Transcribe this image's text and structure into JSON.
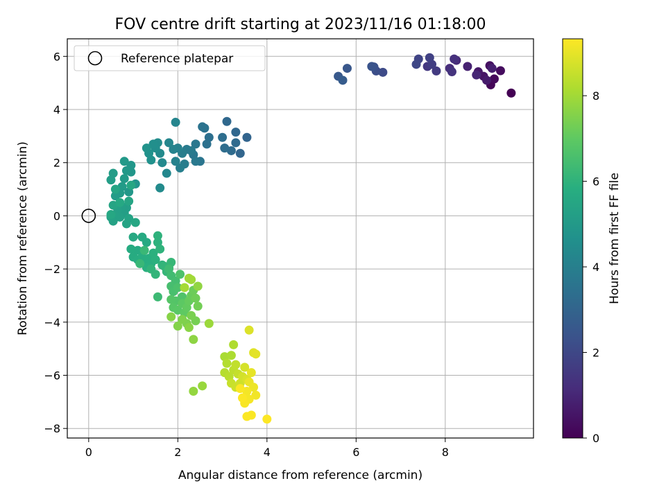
{
  "chart_data": {
    "type": "scatter",
    "title": "FOV centre drift starting at 2023/11/16 01:18:00",
    "xlabel": "Angular distance from reference (arcmin)",
    "ylabel": "Rotation from reference (arcmin)",
    "xlim": [
      -0.48,
      9.98
    ],
    "ylim": [
      -8.36,
      6.66
    ],
    "xticks": [
      0,
      2,
      4,
      6,
      8
    ],
    "yticks": [
      -8,
      -6,
      -4,
      -2,
      0,
      2,
      4,
      6
    ],
    "grid": true,
    "legend": {
      "placement": "top-left",
      "entries": [
        "Reference platepar"
      ]
    },
    "reference_point": {
      "x": 0,
      "y": 0,
      "label": "Reference platepar"
    },
    "colorbar": {
      "label": "Hours from first FF file",
      "colormap": "viridis",
      "range": [
        0,
        9.33
      ],
      "ticks": [
        0,
        2,
        4,
        6,
        8
      ]
    },
    "series": [
      {
        "fields": [
          "x",
          "y",
          "hours"
        ],
        "points": [
          [
            9.48,
            4.62,
            0.0
          ],
          [
            9.02,
            4.93,
            0.1
          ],
          [
            9.1,
            5.15,
            0.2
          ],
          [
            9.24,
            5.46,
            0.3
          ],
          [
            9.0,
            5.65,
            0.4
          ],
          [
            8.86,
            5.25,
            0.5
          ],
          [
            8.74,
            5.42,
            0.6
          ],
          [
            8.93,
            5.1,
            0.7
          ],
          [
            9.05,
            5.55,
            0.8
          ],
          [
            8.5,
            5.62,
            0.9
          ],
          [
            8.7,
            5.3,
            1.0
          ],
          [
            8.25,
            5.85,
            1.1
          ],
          [
            8.1,
            5.55,
            1.2
          ],
          [
            8.2,
            5.9,
            1.3
          ],
          [
            8.15,
            5.42,
            1.4
          ],
          [
            7.6,
            5.62,
            1.5
          ],
          [
            7.8,
            5.45,
            1.6
          ],
          [
            7.7,
            5.7,
            1.7
          ],
          [
            7.65,
            5.95,
            1.8
          ],
          [
            7.4,
            5.9,
            1.9
          ],
          [
            7.35,
            5.7,
            2.0
          ],
          [
            6.6,
            5.4,
            2.1
          ],
          [
            6.45,
            5.45,
            2.2
          ],
          [
            6.4,
            5.6,
            2.3
          ],
          [
            6.35,
            5.62,
            2.4
          ],
          [
            5.8,
            5.55,
            2.5
          ],
          [
            5.6,
            5.25,
            2.6
          ],
          [
            5.7,
            5.1,
            2.7
          ],
          [
            3.55,
            2.95,
            3.0
          ],
          [
            3.4,
            2.35,
            3.05
          ],
          [
            3.3,
            3.15,
            3.1
          ],
          [
            3.1,
            3.55,
            3.15
          ],
          [
            3.3,
            2.75,
            3.2
          ],
          [
            3.2,
            2.45,
            3.25
          ],
          [
            3.05,
            2.55,
            3.3
          ],
          [
            3.0,
            2.95,
            3.35
          ],
          [
            2.7,
            2.95,
            3.4
          ],
          [
            2.65,
            2.7,
            3.45
          ],
          [
            2.6,
            3.3,
            3.5
          ],
          [
            2.55,
            3.35,
            3.55
          ],
          [
            2.5,
            2.05,
            3.6
          ],
          [
            2.35,
            2.3,
            3.65
          ],
          [
            2.4,
            2.7,
            3.7
          ],
          [
            2.4,
            2.05,
            3.75
          ],
          [
            2.3,
            2.45,
            3.8
          ],
          [
            2.2,
            2.5,
            3.85
          ],
          [
            2.15,
            1.95,
            3.9
          ],
          [
            2.1,
            2.35,
            3.95
          ],
          [
            2.05,
            1.8,
            4.0
          ],
          [
            2.0,
            2.55,
            4.05
          ],
          [
            1.95,
            2.05,
            4.1
          ],
          [
            1.9,
            2.5,
            4.15
          ],
          [
            1.95,
            3.52,
            4.2
          ],
          [
            1.8,
            2.75,
            4.25
          ],
          [
            1.75,
            1.6,
            4.3
          ],
          [
            1.65,
            2.0,
            4.35
          ],
          [
            1.6,
            2.35,
            4.4
          ],
          [
            1.6,
            1.05,
            4.45
          ],
          [
            1.55,
            2.75,
            4.5
          ],
          [
            1.5,
            2.55,
            4.55
          ],
          [
            1.45,
            2.7,
            4.6
          ],
          [
            1.4,
            2.1,
            4.65
          ],
          [
            1.35,
            2.35,
            4.7
          ],
          [
            1.3,
            2.55,
            4.75
          ],
          [
            1.05,
            1.2,
            4.8
          ],
          [
            0.95,
            1.65,
            4.85
          ],
          [
            0.95,
            1.9,
            4.9
          ],
          [
            0.9,
            0.9,
            4.92
          ],
          [
            0.85,
            1.7,
            4.95
          ],
          [
            0.8,
            2.05,
            5.0
          ],
          [
            0.8,
            1.4,
            5.02
          ],
          [
            0.75,
            1.1,
            5.05
          ],
          [
            0.7,
            0.85,
            5.08
          ],
          [
            0.6,
            0.75,
            5.1
          ],
          [
            0.55,
            1.6,
            5.12
          ],
          [
            0.5,
            1.35,
            5.15
          ],
          [
            0.85,
            0.3,
            5.18
          ],
          [
            0.8,
            0.1,
            5.2
          ],
          [
            0.75,
            0.35,
            5.22
          ],
          [
            0.7,
            -0.05,
            5.25
          ],
          [
            0.65,
            0.25,
            5.28
          ],
          [
            0.6,
            0.0,
            5.3
          ],
          [
            0.55,
            -0.2,
            5.32
          ],
          [
            0.5,
            -0.05,
            5.35
          ],
          [
            0.9,
            -0.1,
            5.38
          ],
          [
            0.85,
            -0.3,
            5.4
          ],
          [
            0.55,
            0.4,
            5.42
          ],
          [
            0.9,
            0.55,
            5.45
          ],
          [
            0.6,
            1.0,
            5.48
          ],
          [
            0.95,
            1.15,
            5.5
          ],
          [
            1.05,
            -0.25,
            5.52
          ],
          [
            0.5,
            0.05,
            5.55
          ],
          [
            0.7,
            0.5,
            5.58
          ],
          [
            1.0,
            -0.8,
            5.6
          ],
          [
            1.2,
            -0.8,
            5.62
          ],
          [
            1.3,
            -1.0,
            5.65
          ],
          [
            1.1,
            -1.3,
            5.68
          ],
          [
            0.95,
            -1.25,
            5.7
          ],
          [
            1.0,
            -1.55,
            5.72
          ],
          [
            1.1,
            -1.65,
            5.75
          ],
          [
            1.2,
            -1.55,
            5.78
          ],
          [
            1.25,
            -1.8,
            5.8
          ],
          [
            1.35,
            -1.6,
            5.82
          ],
          [
            1.4,
            -1.8,
            5.85
          ],
          [
            1.3,
            -1.95,
            5.88
          ],
          [
            1.45,
            -1.4,
            5.9
          ],
          [
            1.5,
            -1.65,
            5.92
          ],
          [
            1.55,
            -1.0,
            5.95
          ],
          [
            1.55,
            -0.75,
            5.98
          ],
          [
            1.6,
            -1.25,
            6.0
          ],
          [
            1.65,
            -1.85,
            6.02
          ],
          [
            1.4,
            -2.0,
            6.05
          ],
          [
            1.5,
            -2.2,
            6.08
          ],
          [
            1.7,
            -1.9,
            6.1
          ],
          [
            1.8,
            -1.95,
            6.12
          ],
          [
            1.75,
            -2.1,
            6.15
          ],
          [
            1.85,
            -1.75,
            6.18
          ],
          [
            1.15,
            -1.8,
            6.2
          ],
          [
            1.25,
            -1.3,
            6.22
          ],
          [
            1.55,
            -3.05,
            6.3
          ],
          [
            1.8,
            -2.0,
            6.35
          ],
          [
            1.85,
            -2.25,
            6.4
          ],
          [
            1.95,
            -2.45,
            6.45
          ],
          [
            1.85,
            -2.65,
            6.5
          ],
          [
            1.9,
            -2.85,
            6.55
          ],
          [
            2.0,
            -2.7,
            6.6
          ],
          [
            2.05,
            -2.2,
            6.65
          ],
          [
            2.1,
            -3.05,
            6.7
          ],
          [
            1.95,
            -3.2,
            6.75
          ],
          [
            1.85,
            -3.15,
            6.8
          ],
          [
            1.9,
            -3.45,
            6.85
          ],
          [
            2.0,
            -3.55,
            6.9
          ],
          [
            2.1,
            -3.3,
            6.95
          ],
          [
            2.15,
            -3.65,
            7.0
          ],
          [
            2.2,
            -3.45,
            7.05
          ],
          [
            2.25,
            -3.2,
            7.1
          ],
          [
            2.3,
            -3.0,
            7.15
          ],
          [
            2.35,
            -2.8,
            7.2
          ],
          [
            2.4,
            -3.1,
            7.25
          ],
          [
            2.45,
            -3.4,
            7.3
          ],
          [
            2.4,
            -3.95,
            7.35
          ],
          [
            2.3,
            -3.75,
            7.4
          ],
          [
            2.2,
            -4.05,
            7.45
          ],
          [
            2.1,
            -3.9,
            7.5
          ],
          [
            2.0,
            -4.15,
            7.55
          ],
          [
            1.85,
            -3.8,
            7.6
          ],
          [
            2.25,
            -4.2,
            7.65
          ],
          [
            2.35,
            -4.65,
            7.7
          ],
          [
            2.45,
            -2.65,
            7.75
          ],
          [
            2.35,
            -6.6,
            7.8
          ],
          [
            2.55,
            -6.4,
            7.85
          ],
          [
            2.7,
            -4.05,
            7.9
          ],
          [
            2.3,
            -2.4,
            7.95
          ],
          [
            2.25,
            -2.35,
            8.0
          ],
          [
            2.15,
            -2.7,
            8.05
          ],
          [
            3.05,
            -5.3,
            8.1
          ],
          [
            3.2,
            -5.25,
            8.15
          ],
          [
            3.25,
            -4.85,
            8.2
          ],
          [
            3.1,
            -5.55,
            8.25
          ],
          [
            3.05,
            -5.9,
            8.3
          ],
          [
            3.15,
            -6.05,
            8.35
          ],
          [
            3.25,
            -5.8,
            8.4
          ],
          [
            3.3,
            -5.6,
            8.45
          ],
          [
            3.35,
            -5.95,
            8.5
          ],
          [
            3.2,
            -6.3,
            8.55
          ],
          [
            3.3,
            -6.45,
            8.6
          ],
          [
            3.4,
            -6.3,
            8.65
          ],
          [
            3.45,
            -6.05,
            8.7
          ],
          [
            3.5,
            -5.7,
            8.75
          ],
          [
            3.55,
            -6.15,
            8.8
          ],
          [
            3.6,
            -4.3,
            8.85
          ],
          [
            3.7,
            -5.15,
            8.9
          ],
          [
            3.75,
            -5.2,
            8.95
          ],
          [
            3.65,
            -5.9,
            9.0
          ],
          [
            3.6,
            -6.25,
            9.05
          ],
          [
            3.7,
            -6.45,
            9.1
          ],
          [
            3.75,
            -6.75,
            9.15
          ],
          [
            3.55,
            -6.6,
            9.2
          ],
          [
            3.6,
            -6.9,
            9.22
          ],
          [
            3.5,
            -7.05,
            9.25
          ],
          [
            3.65,
            -7.5,
            9.28
          ],
          [
            3.55,
            -7.55,
            9.3
          ],
          [
            4.0,
            -7.65,
            9.32
          ],
          [
            3.4,
            -6.5,
            9.28
          ],
          [
            3.45,
            -6.85,
            9.3
          ]
        ]
      }
    ]
  }
}
